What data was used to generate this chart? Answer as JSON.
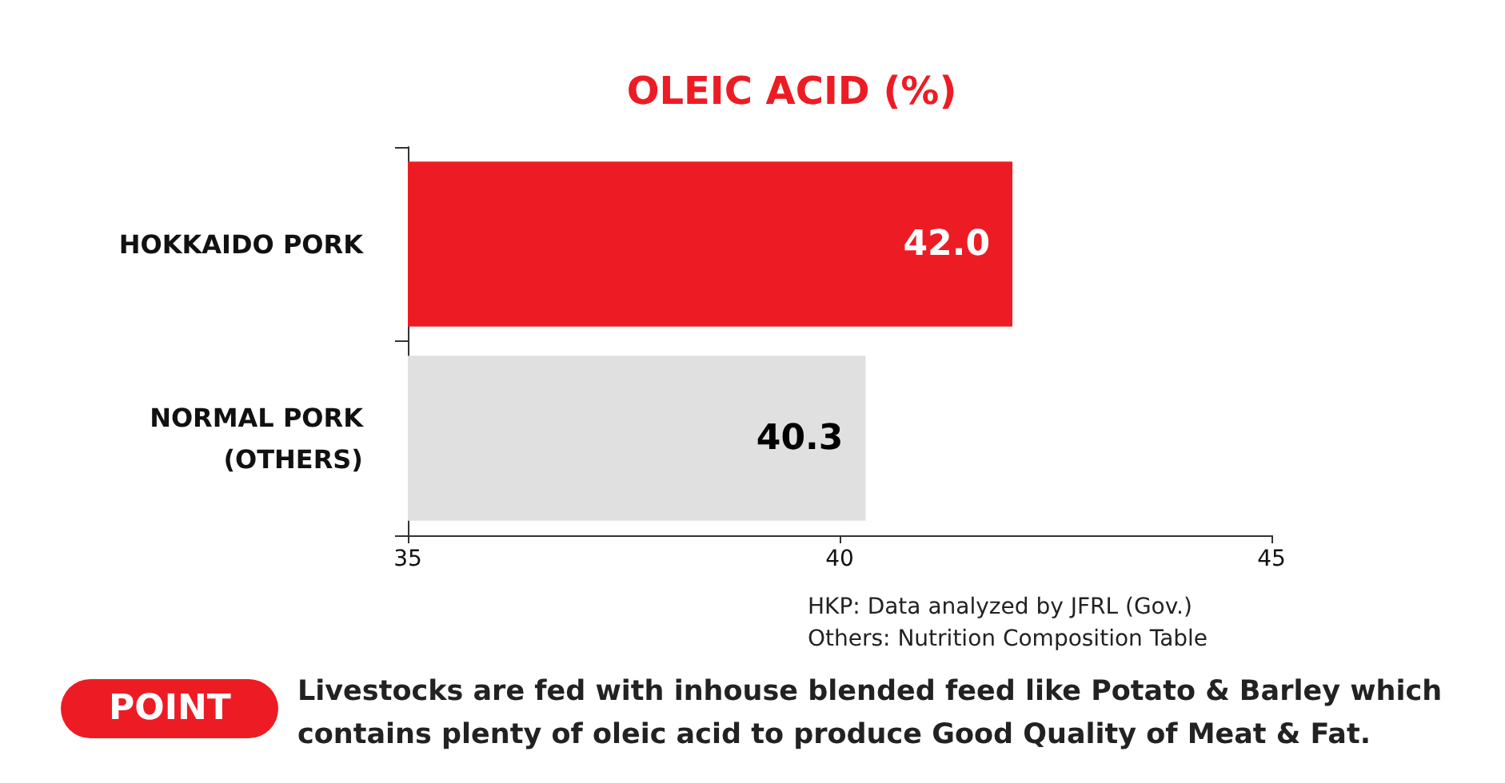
{
  "chart_data": {
    "type": "bar",
    "orientation": "horizontal",
    "title": "OLEIC ACID (%)",
    "categories": [
      "HOKKAIDO PORK",
      "NORMAL PORK\n(OTHERS)"
    ],
    "values": [
      42.0,
      40.3
    ],
    "colors": [
      "#ed1c24",
      "#e0e0e0"
    ],
    "value_labels": [
      "42.0",
      "40.3"
    ],
    "xlim": [
      35,
      45
    ],
    "xticks": [
      35,
      40,
      45
    ],
    "grid": false,
    "annotations": [
      "HKP: Data analyzed by JFRL (Gov.)",
      "Others: Nutrition Composition Table",
      "POINT",
      "Livestocks are fed with inhouse blended feed like Potato & Barley which\ncontains plenty of oleic acid to produce Good Quality of Meat & Fat."
    ]
  }
}
